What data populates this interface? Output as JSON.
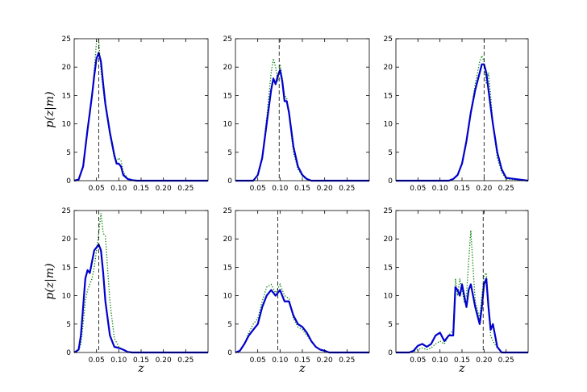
{
  "chart_data": [
    {
      "type": "line",
      "xlabel": "",
      "ylabel": "p(z|m)",
      "xlim": [
        0,
        0.3
      ],
      "ylim": [
        0,
        25
      ],
      "xticks": [
        0.05,
        0.1,
        0.15,
        0.2,
        0.25
      ],
      "yticks": [
        0,
        5,
        10,
        15,
        20,
        25
      ],
      "reference_z": 0.055,
      "series": [
        {
          "style": "solid",
          "color": "#0000cc",
          "x": [
            0.0,
            0.01,
            0.02,
            0.03,
            0.035,
            0.04,
            0.045,
            0.05,
            0.055,
            0.06,
            0.065,
            0.07,
            0.08,
            0.09,
            0.095,
            0.1,
            0.105,
            0.11,
            0.12,
            0.13,
            0.14,
            0.15,
            0.3
          ],
          "y": [
            0,
            0.2,
            2.5,
            9,
            12,
            15,
            18.5,
            21.5,
            22.5,
            21,
            17,
            13.5,
            8.5,
            4.5,
            3,
            3,
            2.5,
            1,
            0.3,
            0.1,
            0,
            0,
            0
          ]
        },
        {
          "style": "dotted",
          "color": "#008000",
          "x": [
            0.0,
            0.01,
            0.02,
            0.03,
            0.035,
            0.04,
            0.045,
            0.05,
            0.055,
            0.06,
            0.065,
            0.07,
            0.08,
            0.09,
            0.095,
            0.1,
            0.105,
            0.11,
            0.12,
            0.13,
            0.14,
            0.15,
            0.3
          ],
          "y": [
            0,
            0.2,
            2.5,
            9,
            11.5,
            15,
            19.5,
            24.5,
            24.8,
            19.5,
            16,
            13,
            8,
            4,
            3.5,
            4,
            3.5,
            1.5,
            0.4,
            0.1,
            0,
            0,
            0
          ]
        }
      ]
    },
    {
      "type": "line",
      "xlabel": "",
      "ylabel": "",
      "xlim": [
        0,
        0.3
      ],
      "ylim": [
        0,
        25
      ],
      "xticks": [
        0.05,
        0.1,
        0.15,
        0.2,
        0.25
      ],
      "yticks": [
        0,
        5,
        10,
        15,
        20,
        25
      ],
      "reference_z": 0.098,
      "series": [
        {
          "style": "solid",
          "color": "#0000cc",
          "x": [
            0.0,
            0.04,
            0.05,
            0.06,
            0.07,
            0.08,
            0.085,
            0.09,
            0.095,
            0.1,
            0.105,
            0.11,
            0.115,
            0.12,
            0.13,
            0.14,
            0.15,
            0.16,
            0.17,
            0.3
          ],
          "y": [
            0,
            0,
            1,
            4,
            10,
            16,
            18,
            17,
            18.5,
            19.5,
            17.5,
            14,
            14,
            12,
            6,
            2.5,
            1,
            0.3,
            0,
            0
          ]
        },
        {
          "style": "dotted",
          "color": "#008000",
          "x": [
            0.0,
            0.04,
            0.05,
            0.06,
            0.07,
            0.08,
            0.085,
            0.09,
            0.095,
            0.1,
            0.105,
            0.11,
            0.115,
            0.12,
            0.13,
            0.14,
            0.15,
            0.16,
            0.17,
            0.3
          ],
          "y": [
            0,
            0,
            1,
            4,
            11,
            19,
            21.5,
            20,
            17.5,
            20.5,
            18,
            15,
            14.5,
            11.5,
            5,
            2,
            0.8,
            0.2,
            0,
            0
          ]
        }
      ]
    },
    {
      "type": "line",
      "xlabel": "",
      "ylabel": "",
      "xlim": [
        0,
        0.3
      ],
      "ylim": [
        0,
        25
      ],
      "xticks": [
        0.05,
        0.1,
        0.15,
        0.2,
        0.25
      ],
      "yticks": [
        0,
        5,
        10,
        15,
        20,
        25
      ],
      "reference_z": 0.2,
      "series": [
        {
          "style": "solid",
          "color": "#0000cc",
          "x": [
            0.0,
            0.12,
            0.13,
            0.14,
            0.15,
            0.16,
            0.17,
            0.18,
            0.19,
            0.195,
            0.2,
            0.205,
            0.21,
            0.215,
            0.22,
            0.23,
            0.24,
            0.25,
            0.3
          ],
          "y": [
            0,
            0,
            0.3,
            1,
            3,
            7,
            12,
            16,
            19,
            20.5,
            20.5,
            19,
            16,
            13,
            10,
            5,
            2,
            0.5,
            0
          ]
        },
        {
          "style": "dotted",
          "color": "#008000",
          "x": [
            0.0,
            0.12,
            0.13,
            0.14,
            0.15,
            0.16,
            0.17,
            0.18,
            0.19,
            0.195,
            0.2,
            0.205,
            0.21,
            0.215,
            0.22,
            0.23,
            0.24,
            0.25,
            0.3
          ],
          "y": [
            0,
            0,
            0.2,
            1,
            3,
            6.5,
            12,
            17,
            21,
            22,
            21,
            17,
            19,
            15,
            10,
            4,
            1.5,
            0.3,
            0
          ]
        }
      ]
    },
    {
      "type": "line",
      "xlabel": "z",
      "ylabel": "p(z|m)",
      "xlim": [
        0,
        0.3
      ],
      "ylim": [
        0,
        25
      ],
      "xticks": [
        0.05,
        0.1,
        0.15,
        0.2,
        0.25
      ],
      "yticks": [
        0,
        5,
        10,
        15,
        20,
        25
      ],
      "reference_z": 0.055,
      "series": [
        {
          "style": "solid",
          "color": "#0000cc",
          "x": [
            0.0,
            0.01,
            0.015,
            0.02,
            0.025,
            0.03,
            0.035,
            0.04,
            0.045,
            0.05,
            0.055,
            0.06,
            0.065,
            0.07,
            0.08,
            0.09,
            0.1,
            0.11,
            0.12,
            0.13,
            0.3
          ],
          "y": [
            0,
            0.5,
            3,
            8,
            13,
            14.5,
            14,
            16,
            18,
            18.5,
            19,
            18,
            14,
            9,
            3,
            1,
            0.8,
            0.5,
            0.1,
            0,
            0
          ]
        },
        {
          "style": "dotted",
          "color": "#008000",
          "x": [
            0.0,
            0.01,
            0.015,
            0.02,
            0.025,
            0.03,
            0.035,
            0.04,
            0.045,
            0.05,
            0.055,
            0.06,
            0.065,
            0.07,
            0.08,
            0.09,
            0.1,
            0.11,
            0.12,
            0.13,
            0.3
          ],
          "y": [
            0,
            0.3,
            1.5,
            5,
            9,
            11,
            12,
            13,
            15,
            18,
            21,
            24.5,
            21,
            20.5,
            9,
            2.5,
            1,
            0.5,
            0.1,
            0,
            0
          ]
        }
      ]
    },
    {
      "type": "line",
      "xlabel": "z",
      "ylabel": "",
      "xlim": [
        0,
        0.3
      ],
      "ylim": [
        0,
        25
      ],
      "xticks": [
        0.05,
        0.1,
        0.15,
        0.2,
        0.25
      ],
      "yticks": [
        0,
        5,
        10,
        15,
        20,
        25
      ],
      "reference_z": 0.095,
      "series": [
        {
          "style": "solid",
          "color": "#0000cc",
          "x": [
            0.0,
            0.01,
            0.02,
            0.03,
            0.04,
            0.05,
            0.06,
            0.07,
            0.08,
            0.09,
            0.1,
            0.11,
            0.12,
            0.13,
            0.14,
            0.15,
            0.16,
            0.17,
            0.18,
            0.19,
            0.2,
            0.21,
            0.3
          ],
          "y": [
            0,
            0.3,
            1.5,
            3,
            4,
            5,
            8,
            10,
            11,
            10,
            11,
            9,
            9,
            6.5,
            5,
            4.5,
            3.5,
            2,
            1,
            0.5,
            0.3,
            0,
            0
          ]
        },
        {
          "style": "dotted",
          "color": "#008000",
          "x": [
            0.0,
            0.01,
            0.02,
            0.03,
            0.04,
            0.05,
            0.06,
            0.07,
            0.08,
            0.09,
            0.1,
            0.11,
            0.12,
            0.13,
            0.14,
            0.15,
            0.16,
            0.17,
            0.18,
            0.19,
            0.2,
            0.21,
            0.3
          ],
          "y": [
            0,
            0.2,
            1.5,
            3.5,
            5,
            6,
            9,
            11.5,
            12,
            10.5,
            12,
            10,
            9.5,
            6,
            4.5,
            4,
            3,
            2,
            1,
            0.5,
            0.2,
            0,
            0
          ]
        }
      ]
    },
    {
      "type": "line",
      "xlabel": "z",
      "ylabel": "",
      "xlim": [
        0,
        0.3
      ],
      "ylim": [
        0,
        25
      ],
      "xticks": [
        0.05,
        0.1,
        0.15,
        0.2,
        0.25
      ],
      "yticks": [
        0,
        5,
        10,
        15,
        20,
        25
      ],
      "reference_z": 0.198,
      "series": [
        {
          "style": "solid",
          "color": "#0000cc",
          "x": [
            0.0,
            0.03,
            0.04,
            0.05,
            0.06,
            0.07,
            0.08,
            0.09,
            0.1,
            0.11,
            0.12,
            0.13,
            0.135,
            0.14,
            0.145,
            0.15,
            0.155,
            0.16,
            0.165,
            0.17,
            0.175,
            0.18,
            0.19,
            0.195,
            0.2,
            0.205,
            0.21,
            0.215,
            0.22,
            0.23,
            0.24,
            0.3
          ],
          "y": [
            0,
            0,
            0.3,
            1.2,
            1.5,
            1,
            1.5,
            3,
            3.5,
            2,
            3,
            3,
            11.5,
            11,
            10,
            12,
            10,
            8,
            11,
            12,
            10,
            8,
            5,
            8,
            12,
            13,
            8,
            4,
            5,
            1,
            0,
            0
          ]
        },
        {
          "style": "dotted",
          "color": "#008000",
          "x": [
            0.0,
            0.03,
            0.04,
            0.05,
            0.06,
            0.07,
            0.08,
            0.09,
            0.1,
            0.11,
            0.12,
            0.13,
            0.135,
            0.14,
            0.145,
            0.15,
            0.155,
            0.16,
            0.165,
            0.17,
            0.175,
            0.18,
            0.19,
            0.195,
            0.2,
            0.205,
            0.21,
            0.215,
            0.22,
            0.23,
            0.24,
            0.3
          ],
          "y": [
            0,
            0,
            0.2,
            0.5,
            0.8,
            0.5,
            0.8,
            1.5,
            2,
            1.5,
            3,
            4,
            13,
            10,
            13,
            11,
            9,
            10,
            16,
            21.5,
            15,
            9,
            6,
            10,
            13.5,
            14,
            9,
            3,
            2,
            0.8,
            0,
            0
          ]
        }
      ]
    }
  ]
}
